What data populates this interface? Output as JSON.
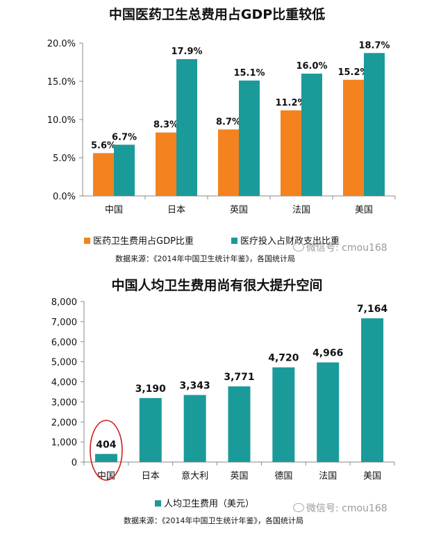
{
  "chart_data": [
    {
      "type": "bar",
      "title": "中国医药卫生总费用占GDP比重较低",
      "categories": [
        "中国",
        "日本",
        "英国",
        "法国",
        "美国"
      ],
      "series": [
        {
          "name": "医药卫生费用占GDP比重",
          "values": [
            5.6,
            8.3,
            8.7,
            11.2,
            15.2
          ],
          "labels": [
            "5.6%",
            "8.3%",
            "8.7%",
            "11.2%",
            "15.2%"
          ],
          "color": "#F4821F"
        },
        {
          "name": "医疗投入占财政支出比重",
          "values": [
            6.7,
            17.9,
            15.1,
            16.0,
            18.7
          ],
          "labels": [
            "6.7%",
            "17.9%",
            "15.1%",
            "16.0%",
            "18.7%"
          ],
          "color": "#1B9A9A"
        }
      ],
      "yticks": [
        "0.0%",
        "5.0%",
        "10.0%",
        "15.0%",
        "20.0%"
      ],
      "ylim": [
        0,
        20
      ],
      "legend_position": "bottom",
      "source": "数据来源：《2014年中国卫生统计年鉴》，各国统计局"
    },
    {
      "type": "bar",
      "title": "中国人均卫生费用尚有很大提升空间",
      "categories": [
        "中国",
        "日本",
        "意大利",
        "英国",
        "德国",
        "法国",
        "美国"
      ],
      "series": [
        {
          "name": "人均卫生费用（美元）",
          "values": [
            404,
            3190,
            3343,
            3771,
            4720,
            4966,
            7164
          ],
          "labels": [
            "404",
            "3,190",
            "3,343",
            "3,771",
            "4,720",
            "4,966",
            "7,164"
          ],
          "color": "#1B9A9A"
        }
      ],
      "yticks": [
        "0",
        "1,000",
        "2,000",
        "3,000",
        "4,000",
        "5,000",
        "6,000",
        "7,000",
        "8,000"
      ],
      "ylim": [
        0,
        8000
      ],
      "highlight_color": "#CC1E1E",
      "legend_position": "bottom",
      "source": "数据来源：《2014年中国卫生统计年鉴》，各国统计局"
    }
  ],
  "watermark": "微信号: cmou168"
}
